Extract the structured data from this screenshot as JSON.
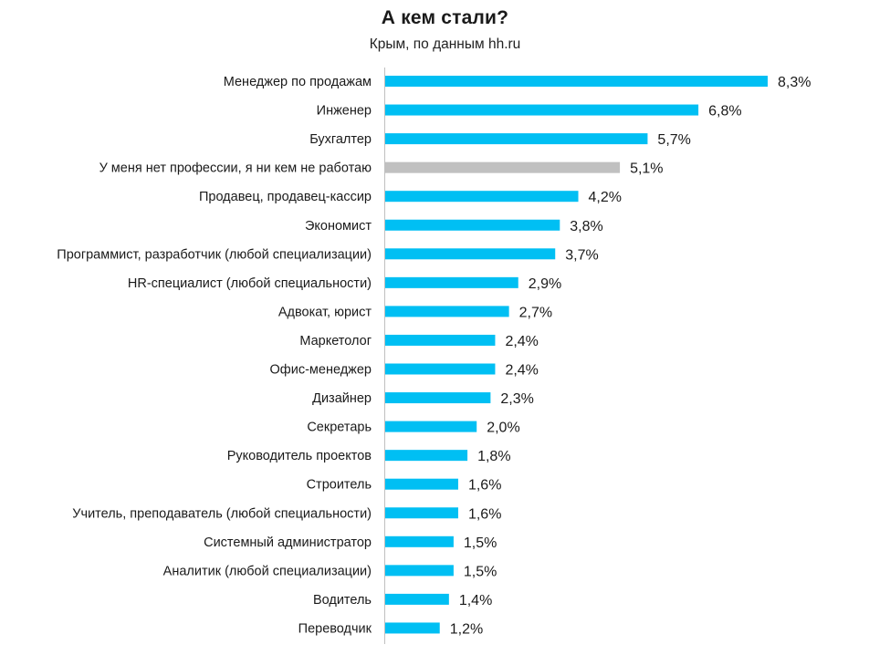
{
  "chart_data": {
    "type": "bar",
    "orientation": "horizontal",
    "title": "А кем стали?",
    "subtitle": "Крым, по данным hh.ru",
    "categories": [
      "Менеджер по продажам",
      "Инженер",
      "Бухгалтер",
      "У меня нет профессии, я ни кем не работаю",
      "Продавец, продавец-кассир",
      "Экономист",
      "Программист, разработчик (любой специализации)",
      "HR-специалист (любой специальности)",
      "Адвокат, юрист",
      "Маркетолог",
      "Офис-менеджер",
      "Дизайнер",
      "Секретарь",
      "Руководитель проектов",
      "Строитель",
      "Учитель, преподаватель (любой специальности)",
      "Системный администратор",
      "Аналитик (любой специализации)",
      "Водитель",
      "Переводчик"
    ],
    "values": [
      8.3,
      6.8,
      5.7,
      5.1,
      4.2,
      3.8,
      3.7,
      2.9,
      2.7,
      2.4,
      2.4,
      2.3,
      2.0,
      1.8,
      1.6,
      1.6,
      1.5,
      1.5,
      1.4,
      1.2
    ],
    "value_labels": [
      "8,3%",
      "6,8%",
      "5,7%",
      "5,1%",
      "4,2%",
      "3,8%",
      "3,7%",
      "2,9%",
      "2,7%",
      "2,4%",
      "2,4%",
      "2,3%",
      "2,0%",
      "1,8%",
      "1,6%",
      "1,6%",
      "1,5%",
      "1,5%",
      "1,4%",
      "1,2%"
    ],
    "bar_colors": [
      "#00bff3",
      "#00bff3",
      "#00bff3",
      "#c0c0c0",
      "#00bff3",
      "#00bff3",
      "#00bff3",
      "#00bff3",
      "#00bff3",
      "#00bff3",
      "#00bff3",
      "#00bff3",
      "#00bff3",
      "#00bff3",
      "#00bff3",
      "#00bff3",
      "#00bff3",
      "#00bff3",
      "#00bff3",
      "#00bff3"
    ],
    "xlim": [
      0,
      8.3
    ],
    "grid": false,
    "axis_line_color": "#bfbfbf"
  }
}
